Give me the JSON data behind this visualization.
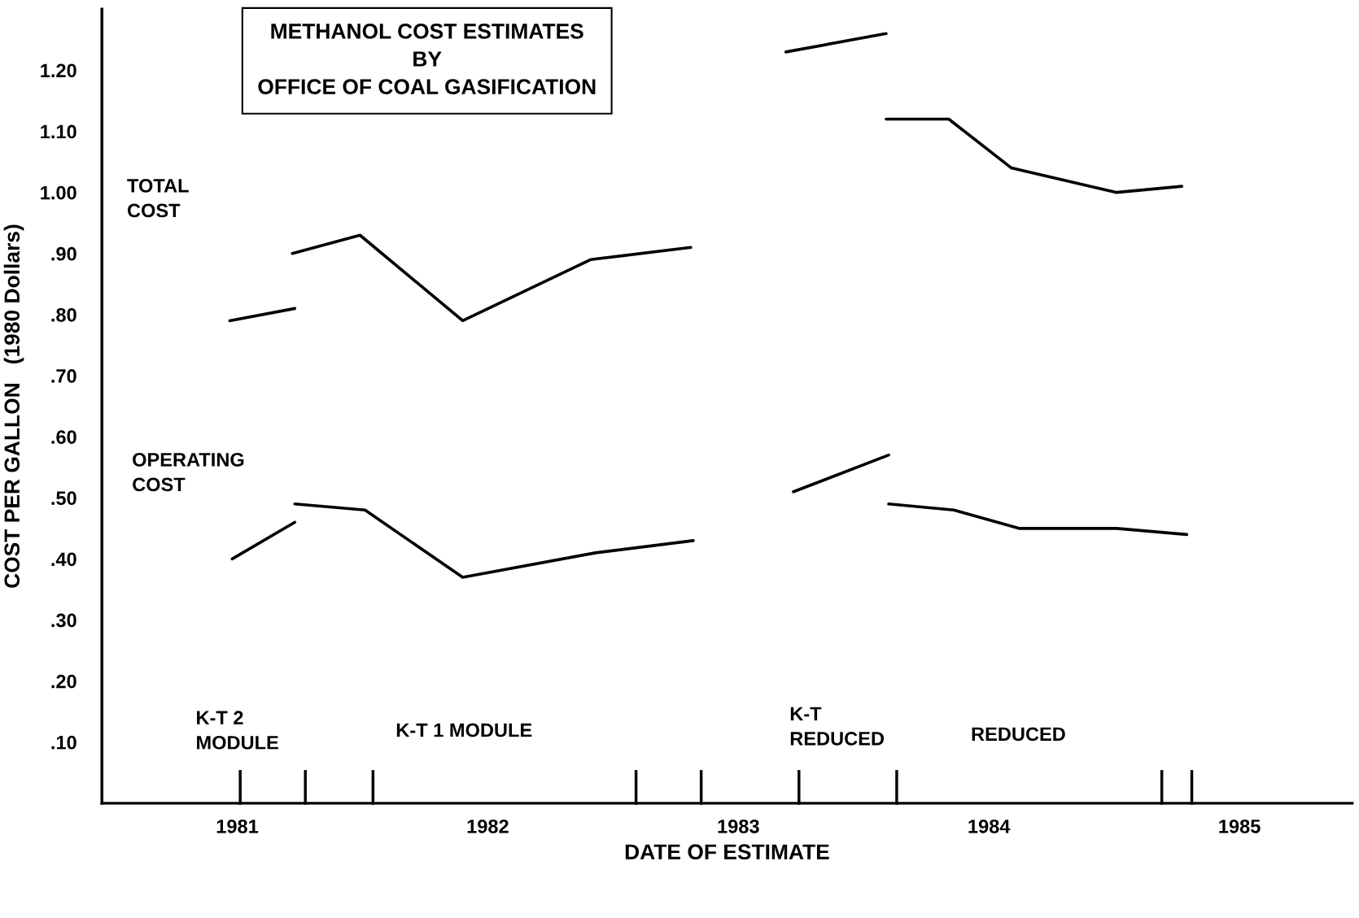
{
  "chart_data": {
    "type": "line",
    "title": "METHANOL COST ESTIMATES\nBY\nOFFICE OF COAL GASIFICATION",
    "xlabel": "DATE OF ESTIMATE",
    "ylabel": "COST PER GALLON   (1980 Dollars)",
    "series": [
      {
        "color": "#000000",
        "x": [
          1980.97,
          1981.23
        ],
        "values": [
          0.79,
          0.81
        ]
      },
      {
        "color": "#000000",
        "x": [
          1981.22,
          1981.49,
          1981.9,
          1982.41,
          1982.81
        ],
        "values": [
          0.9,
          0.93,
          0.79,
          0.89,
          0.91
        ]
      },
      {
        "color": "#000000",
        "x": [
          1983.19,
          1983.59
        ],
        "values": [
          1.23,
          1.26
        ]
      },
      {
        "color": "#000000",
        "x": [
          1983.59,
          1983.84,
          1984.09,
          1984.51,
          1984.77
        ],
        "values": [
          1.12,
          1.12,
          1.04,
          1.0,
          1.01
        ]
      },
      {
        "color": "#000000",
        "x": [
          1980.98,
          1981.23
        ],
        "values": [
          0.4,
          0.46
        ]
      },
      {
        "color": "#000000",
        "x": [
          1981.23,
          1981.51,
          1981.9,
          1982.43,
          1982.82
        ],
        "values": [
          0.49,
          0.48,
          0.37,
          0.41,
          0.43
        ]
      },
      {
        "color": "#000000",
        "x": [
          1983.22,
          1983.6
        ],
        "values": [
          0.51,
          0.57
        ]
      },
      {
        "color": "#000000",
        "x": [
          1983.6,
          1983.86,
          1984.12,
          1984.51,
          1984.79
        ],
        "values": [
          0.49,
          0.48,
          0.45,
          0.45,
          0.44
        ]
      }
    ],
    "annotations": [
      "TOTAL\nCOST",
      "OPERATING\nCOST",
      "K-T 2\nMODULE",
      "K-T 1 MODULE",
      "K-T\nREDUCED",
      "REDUCED"
    ],
    "xlim": [
      1980.46,
      1985.45
    ],
    "ylim": [
      0,
      1.3
    ],
    "xticks": [
      {
        "value": 1981,
        "label": "1981"
      },
      {
        "value": 1982,
        "label": "1982"
      },
      {
        "value": 1983,
        "label": "1983"
      },
      {
        "value": 1984,
        "label": "1984"
      },
      {
        "value": 1985,
        "label": "1985"
      }
    ],
    "yticks": [
      {
        "value": 0.1,
        "label": ".10"
      },
      {
        "value": 0.2,
        "label": ".20"
      },
      {
        "value": 0.3,
        "label": ".30"
      },
      {
        "value": 0.4,
        "label": ".40"
      },
      {
        "value": 0.5,
        "label": ".50"
      },
      {
        "value": 0.6,
        "label": ".60"
      },
      {
        "value": 0.7,
        "label": ".70"
      },
      {
        "value": 0.8,
        "label": ".80"
      },
      {
        "value": 0.9,
        "label": ".90"
      },
      {
        "value": 1.0,
        "label": "1.00"
      },
      {
        "value": 1.1,
        "label": "1.10"
      },
      {
        "value": 1.2,
        "label": "1.20"
      }
    ],
    "grid": false,
    "legend": false,
    "marker": "none",
    "line_style": "solid"
  }
}
